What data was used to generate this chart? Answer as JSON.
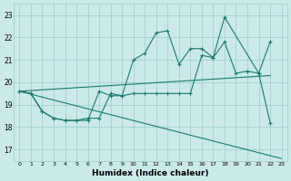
{
  "xlabel": "Humidex (Indice chaleur)",
  "xlim": [
    -0.5,
    23.5
  ],
  "ylim": [
    16.5,
    23.5
  ],
  "xticks": [
    0,
    1,
    2,
    3,
    4,
    5,
    6,
    7,
    8,
    9,
    10,
    11,
    12,
    13,
    14,
    15,
    16,
    17,
    18,
    19,
    20,
    21,
    22,
    23
  ],
  "yticks": [
    17,
    18,
    19,
    20,
    21,
    22,
    23
  ],
  "bg_color": "#cce9e9",
  "grid_color": "#99cccc",
  "line_color": "#1a7a6e",
  "lines": [
    {
      "x": [
        0,
        1,
        2,
        3,
        4,
        5,
        6,
        7,
        8,
        9,
        10,
        11,
        12,
        13,
        14,
        15,
        16,
        17,
        18,
        21,
        22
      ],
      "y": [
        19.6,
        19.5,
        18.7,
        18.4,
        18.3,
        18.3,
        18.3,
        19.6,
        19.4,
        19.4,
        21.0,
        21.3,
        22.2,
        22.3,
        20.8,
        21.5,
        21.5,
        21.1,
        22.9,
        20.4,
        18.2
      ],
      "marker": true
    },
    {
      "x": [
        0,
        1,
        2,
        3,
        4,
        5,
        6,
        7,
        8,
        9,
        10,
        11,
        12,
        13,
        14,
        15,
        16,
        17,
        18,
        19,
        20,
        21,
        22
      ],
      "y": [
        19.6,
        19.5,
        18.7,
        18.4,
        18.3,
        18.3,
        18.4,
        18.4,
        19.5,
        19.4,
        19.5,
        19.5,
        19.5,
        19.5,
        19.5,
        19.5,
        21.2,
        21.1,
        21.8,
        20.4,
        20.5,
        20.4,
        21.8
      ],
      "marker": true
    },
    {
      "x": [
        0,
        22
      ],
      "y": [
        19.6,
        20.3
      ],
      "marker": false
    },
    {
      "x": [
        0,
        23
      ],
      "y": [
        19.6,
        16.6
      ],
      "marker": false
    }
  ]
}
